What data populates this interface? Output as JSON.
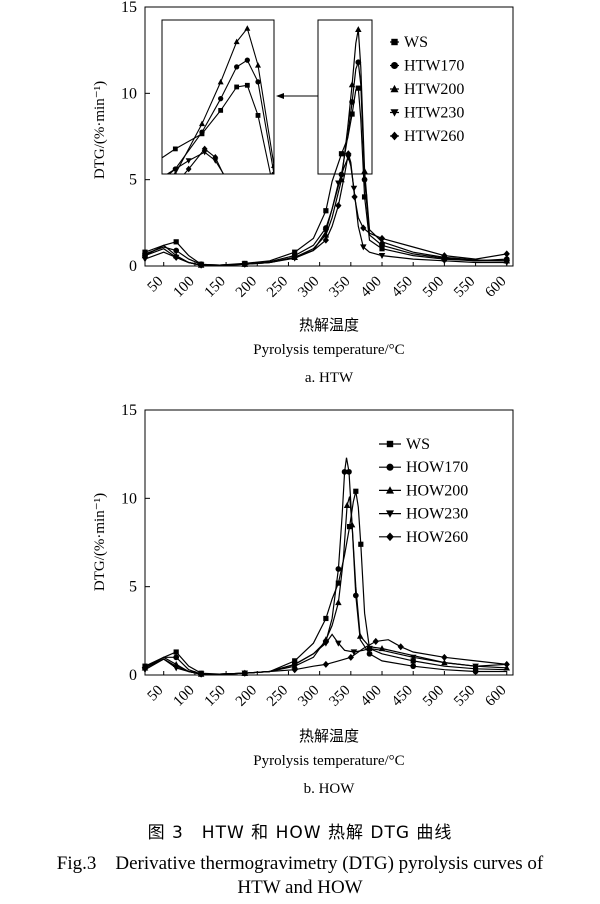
{
  "chart_data": [
    {
      "type": "line",
      "panel_label": "a. HTW",
      "xlabel_cn": "热解温度",
      "xlabel": "Pyrolysis temperature/°C",
      "ylabel": "DTG/(%·min⁻¹)",
      "x_ticks": [
        "50",
        "100",
        "150",
        "200",
        "250",
        "300",
        "350",
        "400",
        "450",
        "500",
        "550",
        "600"
      ],
      "y_ticks": [
        "0",
        "5",
        "10",
        "15"
      ],
      "xlim": [
        20,
        610
      ],
      "ylim": [
        0,
        15
      ],
      "inset": true,
      "series": [
        {
          "name": "WS",
          "marker": "square",
          "points": [
            [
              20,
              0.8
            ],
            [
              50,
              1.2
            ],
            [
              70,
              1.4
            ],
            [
              90,
              0.6
            ],
            [
              110,
              0.1
            ],
            [
              140,
              0.05
            ],
            [
              180,
              0.15
            ],
            [
              220,
              0.3
            ],
            [
              260,
              0.8
            ],
            [
              290,
              1.6
            ],
            [
              310,
              3.2
            ],
            [
              320,
              4.9
            ],
            [
              335,
              6.5
            ],
            [
              345,
              7.4
            ],
            [
              352,
              8.8
            ],
            [
              358,
              10.2
            ],
            [
              362,
              10.3
            ],
            [
              366,
              8.5
            ],
            [
              372,
              4.0
            ],
            [
              380,
              1.5
            ],
            [
              400,
              1.0
            ],
            [
              450,
              0.6
            ],
            [
              500,
              0.4
            ],
            [
              550,
              0.3
            ],
            [
              600,
              0.3
            ]
          ]
        },
        {
          "name": "HTW170",
          "marker": "circle",
          "points": [
            [
              20,
              0.7
            ],
            [
              50,
              1.1
            ],
            [
              70,
              0.9
            ],
            [
              90,
              0.4
            ],
            [
              110,
              0.1
            ],
            [
              140,
              0.05
            ],
            [
              180,
              0.1
            ],
            [
              220,
              0.25
            ],
            [
              260,
              0.6
            ],
            [
              290,
              1.2
            ],
            [
              310,
              2.2
            ],
            [
              320,
              3.3
            ],
            [
              335,
              5.3
            ],
            [
              345,
              7.5
            ],
            [
              352,
              9.5
            ],
            [
              358,
              11.4
            ],
            [
              362,
              11.8
            ],
            [
              366,
              10.5
            ],
            [
              372,
              5.0
            ],
            [
              380,
              1.8
            ],
            [
              400,
              1.2
            ],
            [
              450,
              0.7
            ],
            [
              500,
              0.45
            ],
            [
              550,
              0.3
            ],
            [
              600,
              0.4
            ]
          ]
        },
        {
          "name": "HTW200",
          "marker": "triangle-up",
          "points": [
            [
              20,
              0.6
            ],
            [
              50,
              1.2
            ],
            [
              70,
              0.6
            ],
            [
              90,
              0.2
            ],
            [
              110,
              0.05
            ],
            [
              140,
              0.05
            ],
            [
              180,
              0.1
            ],
            [
              220,
              0.2
            ],
            [
              260,
              0.5
            ],
            [
              290,
              1.0
            ],
            [
              310,
              1.8
            ],
            [
              320,
              2.8
            ],
            [
              335,
              5.0
            ],
            [
              345,
              8.0
            ],
            [
              352,
              10.5
            ],
            [
              358,
              12.9
            ],
            [
              362,
              13.7
            ],
            [
              366,
              11.5
            ],
            [
              372,
              5.5
            ],
            [
              380,
              2.1
            ],
            [
              400,
              1.4
            ],
            [
              450,
              0.8
            ],
            [
              500,
              0.5
            ],
            [
              550,
              0.35
            ],
            [
              600,
              0.3
            ]
          ]
        },
        {
          "name": "HTW230",
          "marker": "triangle-down",
          "points": [
            [
              20,
              0.4
            ],
            [
              50,
              0.8
            ],
            [
              70,
              0.5
            ],
            [
              90,
              0.2
            ],
            [
              110,
              0.05
            ],
            [
              140,
              0.05
            ],
            [
              180,
              0.1
            ],
            [
              220,
              0.2
            ],
            [
              260,
              0.45
            ],
            [
              290,
              0.9
            ],
            [
              310,
              2.0
            ],
            [
              320,
              3.3
            ],
            [
              330,
              4.8
            ],
            [
              340,
              5.8
            ],
            [
              346,
              6.3
            ],
            [
              350,
              5.8
            ],
            [
              355,
              4.5
            ],
            [
              362,
              2.3
            ],
            [
              370,
              1.1
            ],
            [
              380,
              0.8
            ],
            [
              400,
              0.6
            ],
            [
              450,
              0.4
            ],
            [
              500,
              0.3
            ],
            [
              550,
              0.2
            ],
            [
              600,
              0.2
            ]
          ]
        },
        {
          "name": "HTW260",
          "marker": "diamond",
          "points": [
            [
              20,
              0.6
            ],
            [
              50,
              1.0
            ],
            [
              70,
              0.5
            ],
            [
              90,
              0.2
            ],
            [
              110,
              0.05
            ],
            [
              140,
              0.05
            ],
            [
              180,
              0.1
            ],
            [
              220,
              0.2
            ],
            [
              260,
              0.5
            ],
            [
              290,
              0.9
            ],
            [
              310,
              1.5
            ],
            [
              320,
              2.3
            ],
            [
              330,
              3.5
            ],
            [
              340,
              5.3
            ],
            [
              346,
              6.5
            ],
            [
              350,
              6.0
            ],
            [
              356,
              4.0
            ],
            [
              362,
              2.8
            ],
            [
              370,
              2.2
            ],
            [
              380,
              1.9
            ],
            [
              400,
              1.6
            ],
            [
              450,
              1.1
            ],
            [
              500,
              0.6
            ],
            [
              550,
              0.4
            ],
            [
              600,
              0.7
            ]
          ]
        }
      ]
    },
    {
      "type": "line",
      "panel_label": "b. HOW",
      "xlabel_cn": "热解温度",
      "xlabel": "Pyrolysis temperature/°C",
      "ylabel": "DTG/(%·min⁻¹)",
      "x_ticks": [
        "50",
        "100",
        "150",
        "200",
        "250",
        "300",
        "350",
        "400",
        "450",
        "500",
        "550",
        "600"
      ],
      "y_ticks": [
        "0",
        "5",
        "10",
        "15"
      ],
      "xlim": [
        20,
        610
      ],
      "ylim": [
        0,
        15
      ],
      "inset": false,
      "series": [
        {
          "name": "WS",
          "marker": "square",
          "points": [
            [
              20,
              0.5
            ],
            [
              50,
              1.0
            ],
            [
              70,
              1.3
            ],
            [
              90,
              0.5
            ],
            [
              110,
              0.1
            ],
            [
              140,
              0.05
            ],
            [
              180,
              0.1
            ],
            [
              220,
              0.2
            ],
            [
              260,
              0.8
            ],
            [
              290,
              1.8
            ],
            [
              310,
              3.2
            ],
            [
              320,
              4.3
            ],
            [
              330,
              5.2
            ],
            [
              340,
              6.8
            ],
            [
              348,
              8.4
            ],
            [
              354,
              9.8
            ],
            [
              358,
              10.4
            ],
            [
              362,
              9.5
            ],
            [
              366,
              7.4
            ],
            [
              372,
              3.5
            ],
            [
              380,
              1.5
            ],
            [
              400,
              1.2
            ],
            [
              450,
              0.8
            ],
            [
              500,
              0.5
            ],
            [
              550,
              0.35
            ],
            [
              600,
              0.3
            ]
          ]
        },
        {
          "name": "HOW170",
          "marker": "circle",
          "points": [
            [
              20,
              0.4
            ],
            [
              50,
              1.0
            ],
            [
              70,
              1.0
            ],
            [
              90,
              0.3
            ],
            [
              110,
              0.05
            ],
            [
              140,
              0.05
            ],
            [
              180,
              0.1
            ],
            [
              220,
              0.2
            ],
            [
              260,
              0.6
            ],
            [
              290,
              1.2
            ],
            [
              310,
              1.9
            ],
            [
              320,
              3.2
            ],
            [
              330,
              6.0
            ],
            [
              336,
              9.0
            ],
            [
              340,
              11.5
            ],
            [
              343,
              12.3
            ],
            [
              347,
              11.5
            ],
            [
              352,
              8.5
            ],
            [
              358,
              4.5
            ],
            [
              365,
              2.0
            ],
            [
              380,
              1.2
            ],
            [
              400,
              0.8
            ],
            [
              450,
              0.5
            ],
            [
              500,
              0.3
            ],
            [
              550,
              0.2
            ],
            [
              600,
              0.2
            ]
          ]
        },
        {
          "name": "HOW200",
          "marker": "triangle-up",
          "points": [
            [
              20,
              0.4
            ],
            [
              50,
              1.0
            ],
            [
              70,
              0.6
            ],
            [
              90,
              0.2
            ],
            [
              110,
              0.05
            ],
            [
              140,
              0.05
            ],
            [
              180,
              0.1
            ],
            [
              220,
              0.2
            ],
            [
              260,
              0.5
            ],
            [
              290,
              1.0
            ],
            [
              310,
              2.0
            ],
            [
              320,
              2.8
            ],
            [
              330,
              4.1
            ],
            [
              338,
              6.5
            ],
            [
              344,
              9.6
            ],
            [
              348,
              10.1
            ],
            [
              352,
              8.5
            ],
            [
              358,
              5.0
            ],
            [
              365,
              2.2
            ],
            [
              380,
              1.6
            ],
            [
              400,
              1.5
            ],
            [
              450,
              1.1
            ],
            [
              500,
              0.7
            ],
            [
              550,
              0.5
            ],
            [
              600,
              0.4
            ]
          ]
        },
        {
          "name": "HOW230",
          "marker": "triangle-down",
          "points": [
            [
              20,
              0.3
            ],
            [
              50,
              0.9
            ],
            [
              70,
              0.4
            ],
            [
              90,
              0.2
            ],
            [
              110,
              0.05
            ],
            [
              140,
              0.05
            ],
            [
              180,
              0.1
            ],
            [
              220,
              0.2
            ],
            [
              260,
              0.6
            ],
            [
              290,
              1.2
            ],
            [
              310,
              1.8
            ],
            [
              320,
              2.3
            ],
            [
              330,
              1.8
            ],
            [
              340,
              1.4
            ],
            [
              355,
              1.3
            ],
            [
              370,
              1.4
            ],
            [
              380,
              1.5
            ],
            [
              400,
              1.4
            ],
            [
              450,
              1.0
            ],
            [
              500,
              0.7
            ],
            [
              550,
              0.5
            ],
            [
              600,
              0.6
            ]
          ]
        },
        {
          "name": "HOW260",
          "marker": "diamond",
          "points": [
            [
              20,
              0.4
            ],
            [
              50,
              0.9
            ],
            [
              70,
              0.5
            ],
            [
              90,
              0.2
            ],
            [
              110,
              0.05
            ],
            [
              140,
              0.05
            ],
            [
              180,
              0.1
            ],
            [
              220,
              0.2
            ],
            [
              260,
              0.3
            ],
            [
              290,
              0.5
            ],
            [
              310,
              0.6
            ],
            [
              330,
              0.8
            ],
            [
              350,
              1.0
            ],
            [
              370,
              1.5
            ],
            [
              390,
              1.9
            ],
            [
              410,
              2.0
            ],
            [
              430,
              1.6
            ],
            [
              450,
              1.3
            ],
            [
              500,
              1.0
            ],
            [
              550,
              0.8
            ],
            [
              600,
              0.6
            ]
          ]
        }
      ]
    }
  ],
  "caption": {
    "cn": "图 3　HTW 和 HOW 热解 DTG 曲线",
    "en_line1": "Fig.3　Derivative thermogravimetry (DTG) pyrolysis curves of",
    "en_line2": "HTW and HOW"
  }
}
